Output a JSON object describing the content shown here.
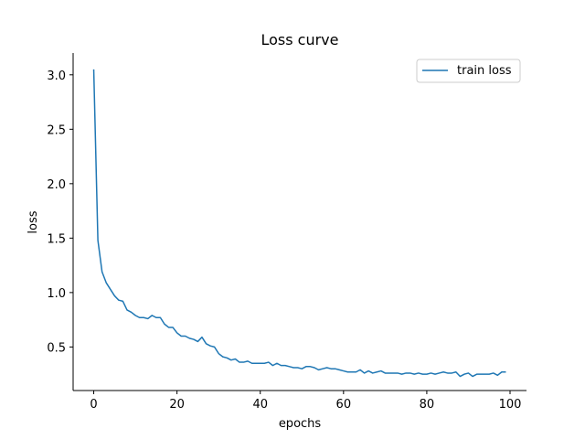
{
  "chart_data": {
    "type": "line",
    "title": "Loss curve",
    "xlabel": "epochs",
    "ylabel": "loss",
    "xlim": [
      -4.95,
      103.95
    ],
    "ylim": [
      0.1,
      3.2
    ],
    "x_ticks": [
      0,
      20,
      40,
      60,
      80,
      100
    ],
    "x_tick_labels": [
      "0",
      "20",
      "40",
      "60",
      "80",
      "100"
    ],
    "y_ticks": [
      0.5,
      1.0,
      1.5,
      2.0,
      2.5,
      3.0
    ],
    "y_tick_labels": [
      "0.5",
      "1.0",
      "1.5",
      "2.0",
      "2.5",
      "3.0"
    ],
    "grid": false,
    "legend_position": "top-right",
    "series": [
      {
        "name": "train loss",
        "color": "#1f77b4",
        "x": [
          0,
          1,
          2,
          3,
          4,
          5,
          6,
          7,
          8,
          9,
          10,
          11,
          12,
          13,
          14,
          15,
          16,
          17,
          18,
          19,
          20,
          21,
          22,
          23,
          24,
          25,
          26,
          27,
          28,
          29,
          30,
          31,
          32,
          33,
          34,
          35,
          36,
          37,
          38,
          39,
          40,
          41,
          42,
          43,
          44,
          45,
          46,
          47,
          48,
          49,
          50,
          51,
          52,
          53,
          54,
          55,
          56,
          57,
          58,
          59,
          60,
          61,
          62,
          63,
          64,
          65,
          66,
          67,
          68,
          69,
          70,
          71,
          72,
          73,
          74,
          75,
          76,
          77,
          78,
          79,
          80,
          81,
          82,
          83,
          84,
          85,
          86,
          87,
          88,
          89,
          90,
          91,
          92,
          93,
          94,
          95,
          96,
          97,
          98,
          99
        ],
        "values": [
          3.05,
          1.48,
          1.19,
          1.09,
          1.03,
          0.97,
          0.93,
          0.92,
          0.84,
          0.82,
          0.79,
          0.77,
          0.77,
          0.76,
          0.79,
          0.77,
          0.77,
          0.71,
          0.68,
          0.68,
          0.63,
          0.6,
          0.6,
          0.58,
          0.57,
          0.55,
          0.59,
          0.53,
          0.51,
          0.5,
          0.44,
          0.41,
          0.4,
          0.38,
          0.39,
          0.36,
          0.36,
          0.37,
          0.35,
          0.35,
          0.35,
          0.35,
          0.36,
          0.33,
          0.35,
          0.33,
          0.33,
          0.32,
          0.31,
          0.31,
          0.3,
          0.32,
          0.32,
          0.31,
          0.29,
          0.3,
          0.31,
          0.3,
          0.3,
          0.29,
          0.28,
          0.27,
          0.27,
          0.27,
          0.29,
          0.26,
          0.28,
          0.26,
          0.27,
          0.28,
          0.26,
          0.26,
          0.26,
          0.26,
          0.25,
          0.26,
          0.26,
          0.25,
          0.26,
          0.25,
          0.25,
          0.26,
          0.25,
          0.26,
          0.27,
          0.26,
          0.26,
          0.27,
          0.23,
          0.25,
          0.26,
          0.23,
          0.25,
          0.25,
          0.25,
          0.25,
          0.26,
          0.24,
          0.27,
          0.27
        ]
      }
    ]
  }
}
